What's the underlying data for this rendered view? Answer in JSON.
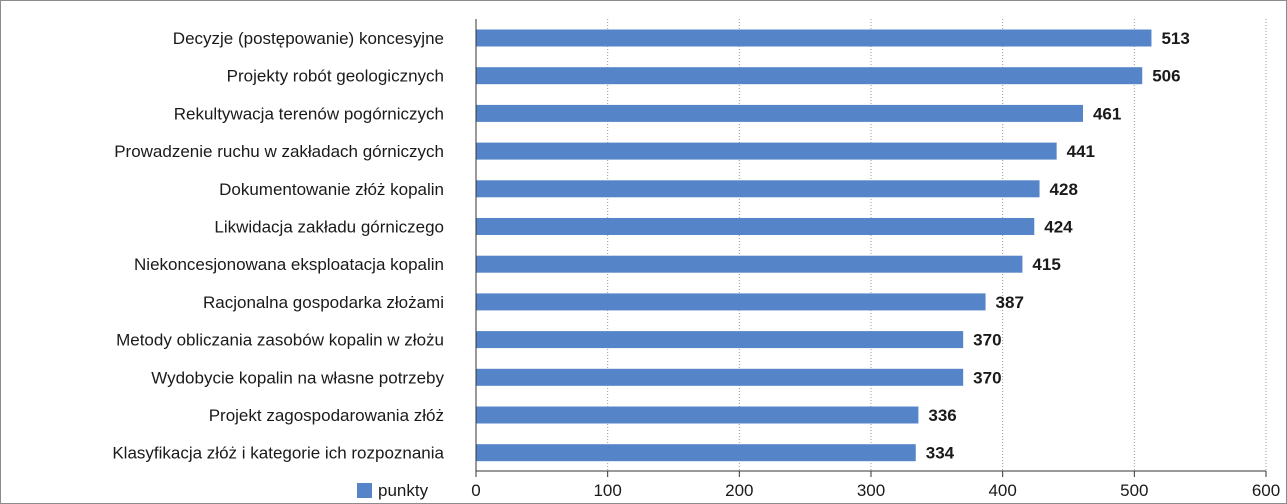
{
  "chart_data": {
    "type": "bar",
    "orientation": "horizontal",
    "categories": [
      "Decyzje (postępowanie) koncesyjne",
      "Projekty robót geologicznych",
      "Rekultywacja terenów pogórniczych",
      "Prowadzenie ruchu w zakładach górniczych",
      "Dokumentowanie złóż kopalin",
      "Likwidacja zakładu górniczego",
      "Niekoncesjonowana eksploatacja kopalin",
      "Racjonalna gospodarka złożami",
      "Metody obliczania zasobów kopalin w złożu",
      "Wydobycie kopalin na własne potrzeby",
      "Projekt zagospodarowania złóż",
      "Klasyfikacja złóż i kategorie ich rozpoznania"
    ],
    "series": [
      {
        "name": "punkty",
        "color": "#5585c8",
        "values": [
          513,
          506,
          461,
          441,
          428,
          424,
          415,
          387,
          370,
          370,
          336,
          334
        ]
      }
    ],
    "value_labels": [
      "513",
      "506",
      "461",
      "441",
      "428",
      "424",
      "415",
      "387",
      "370",
      "370",
      "336",
      "334"
    ],
    "xlim": [
      0,
      600
    ],
    "x_ticks": [
      0,
      100,
      200,
      300,
      400,
      500,
      600
    ],
    "x_tick_labels": [
      "0",
      "100",
      "200",
      "300",
      "400",
      "500",
      "600"
    ],
    "grid": "vertical-dotted",
    "legend_position": "bottom-left",
    "title": "",
    "xlabel": "",
    "ylabel": ""
  }
}
